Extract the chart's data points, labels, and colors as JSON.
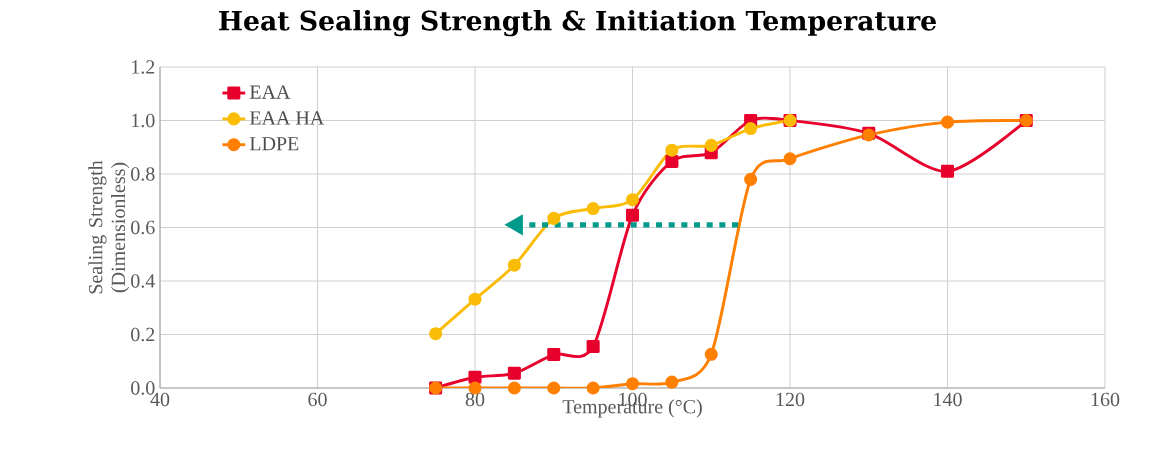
{
  "chart_data": {
    "type": "line",
    "title": "Heat Sealing Strength & Initiation Temperature",
    "xlabel": "Temperature (°C)",
    "ylabel": "Sealing Strength (Dimensionless)",
    "x": [
      75,
      80,
      85,
      90,
      95,
      100,
      105,
      110,
      115,
      120,
      130,
      140,
      150
    ],
    "series": [
      {
        "name": "EAA",
        "color": "#e8002d",
        "marker": "square",
        "values": [
          0.0,
          0.04,
          0.055,
          0.125,
          0.155,
          0.646,
          0.847,
          0.88,
          1.0,
          1.0,
          0.952,
          0.81,
          1.0
        ]
      },
      {
        "name": "EAA HA",
        "color": "#fbbc05",
        "marker": "circle",
        "values": [
          0.203,
          0.332,
          0.459,
          0.634,
          0.671,
          0.704,
          0.889,
          0.907,
          0.97,
          1.0,
          null,
          null,
          null
        ]
      },
      {
        "name": "LDPE",
        "color": "#ff7f00",
        "marker": "circle",
        "values": [
          0.0,
          0.0,
          0.0,
          0.0,
          0.0,
          0.016,
          0.022,
          0.126,
          0.78,
          0.857,
          0.946,
          0.994,
          1.0
        ]
      },
      {
        "color": "#009a8c",
        "marker": "triangle",
        "line_style": "dotted",
        "x": [
          113.4,
          85.3
        ],
        "values": [
          0.61,
          0.61
        ]
      }
    ],
    "xlim": [
      40,
      160
    ],
    "xticks": [
      40,
      60,
      80,
      100,
      120,
      140,
      160
    ],
    "ylim": [
      0,
      1.2
    ],
    "yticks": [
      {
        "value": 0,
        "label": "0.0"
      },
      {
        "value": 0.2,
        "label": "0.2"
      },
      {
        "value": 0.4,
        "label": "0.4"
      },
      {
        "value": 0.6,
        "label": "0.6"
      },
      {
        "value": 0.8,
        "label": "0.8"
      },
      {
        "value": 1.0,
        "label": "1.0"
      },
      {
        "value": 1.2,
        "label": "1.2"
      }
    ],
    "grid": true,
    "legend": "top left"
  }
}
